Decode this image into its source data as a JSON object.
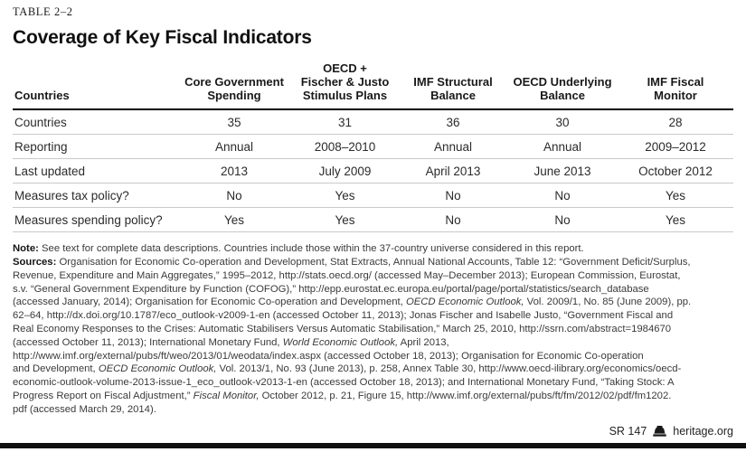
{
  "page": {
    "eyebrow": "TABLE 2–2",
    "title": "Coverage of Key Fiscal Indicators"
  },
  "table": {
    "columns": [
      "Countries",
      "Core Government\nSpending",
      "OECD +\nFischer & Justo\nStimulus Plans",
      "IMF Structural\nBalance",
      "OECD Underlying\nBalance",
      "IMF Fiscal\nMonitor"
    ],
    "rows": [
      {
        "label": "Countries",
        "cells": [
          "35",
          "31",
          "36",
          "30",
          "28"
        ]
      },
      {
        "label": "Reporting",
        "cells": [
          "Annual",
          "2008–2010",
          "Annual",
          "Annual",
          "2009–2012"
        ]
      },
      {
        "label": "Last updated",
        "cells": [
          "2013",
          "July 2009",
          "April 2013",
          "June 2013",
          "October 2012"
        ]
      },
      {
        "label": "Measures tax policy?",
        "cells": [
          "No",
          "Yes",
          "No",
          "No",
          "Yes"
        ]
      },
      {
        "label": "Measures spending policy?",
        "cells": [
          "Yes",
          "Yes",
          "No",
          "No",
          "Yes"
        ]
      }
    ]
  },
  "notes": {
    "lines": [
      [
        {
          "t": "Note:",
          "b": true
        },
        {
          "t": " See text for complete data descriptions. Countries include those within the 37-country universe considered in this report."
        }
      ],
      [
        {
          "t": "Sources:",
          "b": true
        },
        {
          "t": " Organisation for Economic Co-operation and Development, Stat Extracts, Annual National Accounts, Table 12: “Government Deficit/Surplus,"
        }
      ],
      [
        {
          "t": "Revenue, Expenditure and Main Aggregates,” 1995–2012, http://stats.oecd.org/ (accessed May–December 2013); European Commission, Eurostat,"
        }
      ],
      [
        {
          "t": "s.v. “General Government Expenditure by Function (COFOG),” http://epp.eurostat.ec.europa.eu/portal/page/portal/statistics/search_database"
        }
      ],
      [
        {
          "t": "(accessed January, 2014); Organisation for Economic Co-operation and Development, "
        },
        {
          "t": "OECD Economic Outlook,",
          "i": true
        },
        {
          "t": " Vol. 2009/1, No. 85 (June 2009), pp."
        }
      ],
      [
        {
          "t": "62–64, http://dx.doi.org/10.1787/eco_outlook-v2009-1-en (accessed October 11, 2013); Jonas Fischer and Isabelle Justo, “Government Fiscal and"
        }
      ],
      [
        {
          "t": "Real Economy Responses to the Crises: Automatic Stabilisers Versus Automatic Stabilisation,” March 25, 2010, http://ssrn.com/abstract=1984670"
        }
      ],
      [
        {
          "t": "(accessed October 11, 2013); International Monetary Fund, "
        },
        {
          "t": "World Economic Outlook,",
          "i": true
        },
        {
          "t": " April 2013,"
        }
      ],
      [
        {
          "t": "http://www.imf.org/external/pubs/ft/weo/2013/01/weodata/index.aspx (accessed October 18, 2013); Organisation for Economic Co-operation"
        }
      ],
      [
        {
          "t": "and Development, "
        },
        {
          "t": "OECD Economic Outlook,",
          "i": true
        },
        {
          "t": " Vol. 2013/1, No. 93 (June 2013), p. 258, Annex Table 30, http://www.oecd-ilibrary.org/economics/oecd-"
        }
      ],
      [
        {
          "t": "economic-outlook-volume-2013-issue-1_eco_outlook-v2013-1-en (accessed October 18, 2013); and International Monetary Fund, “Taking Stock: A"
        }
      ],
      [
        {
          "t": "Progress Report on Fiscal Adjustment,” "
        },
        {
          "t": "Fiscal Monitor,",
          "i": true
        },
        {
          "t": " October 2012, p. 21, Figure 15, http://www.imf.org/external/pubs/ft/fm/2012/02/pdf/fm1202."
        }
      ],
      [
        {
          "t": "pdf (accessed March 29, 2014)."
        }
      ]
    ]
  },
  "footer": {
    "report_id": "SR 147",
    "site": "heritage.org",
    "bell_icon": "heritage-liberty-bell"
  },
  "colors": {
    "header_rule": "#000000",
    "row_divider": "#c9c9c9",
    "footer_bar": "#101010",
    "text": "#2b2b2b"
  }
}
